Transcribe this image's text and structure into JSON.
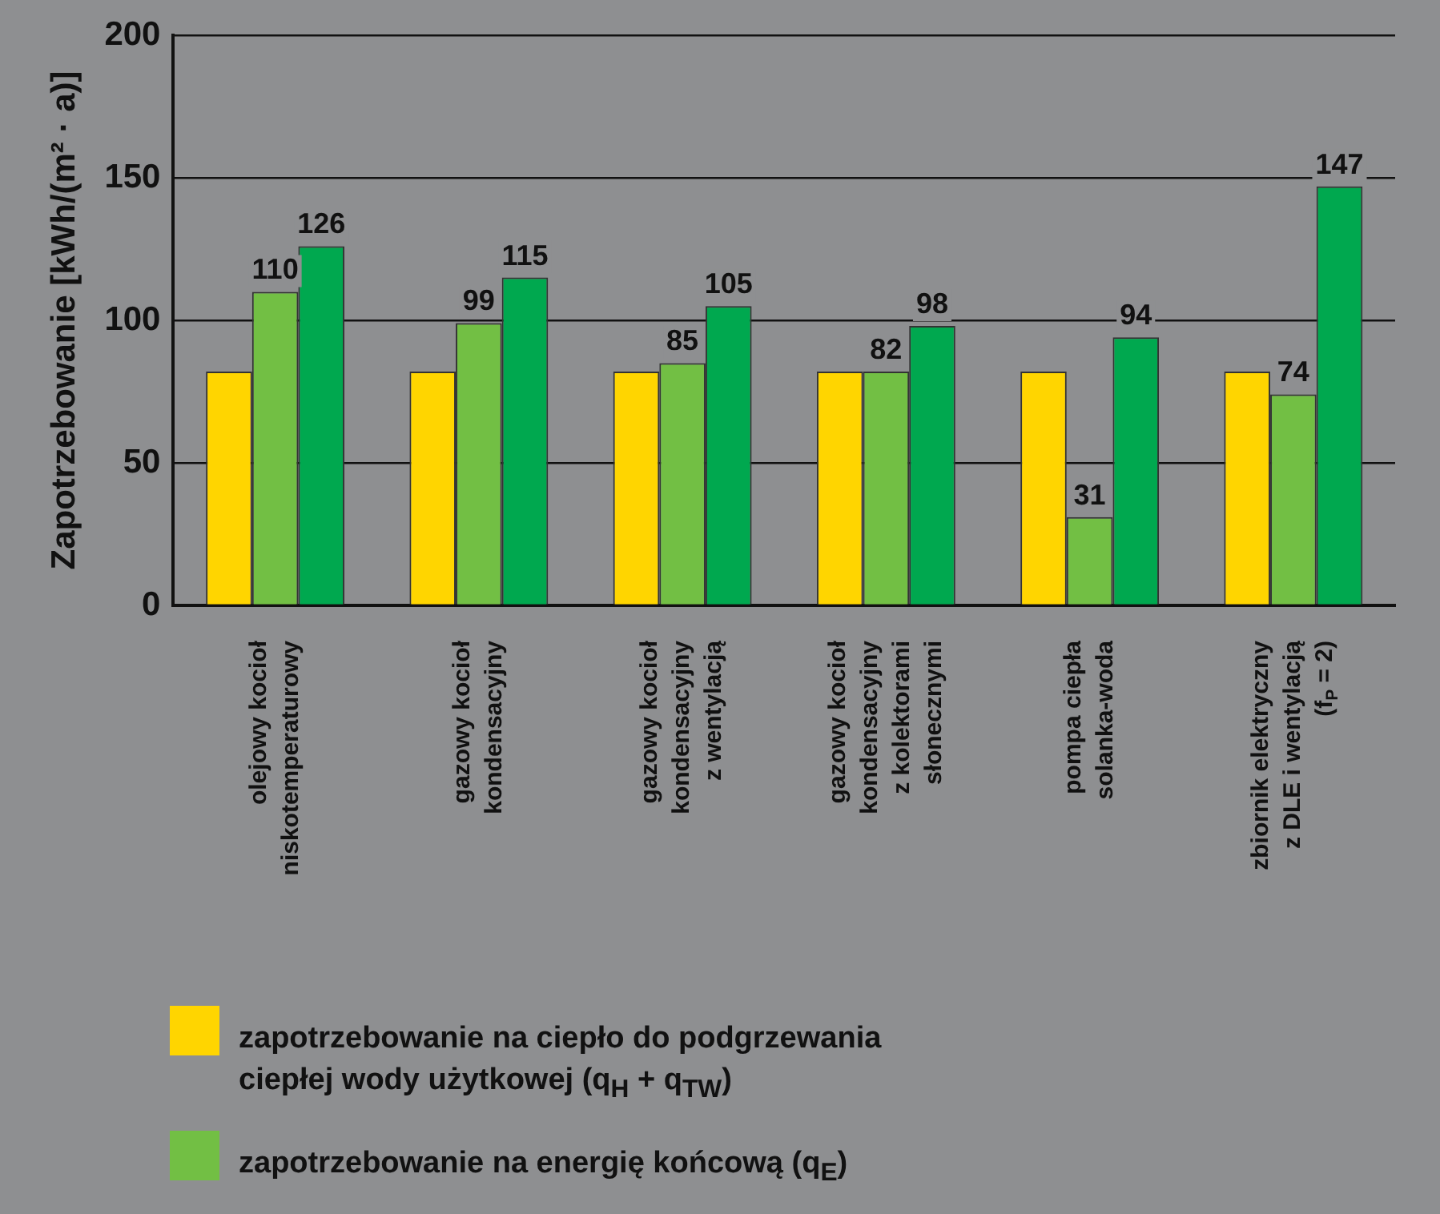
{
  "chart_data": {
    "type": "bar",
    "ylabel": "Zapotrzebowanie [kWh/(m² · a)]",
    "categories": [
      "olejowy kocioł\nniskotemperaturowy",
      "gazowy kocioł\nkondensacyjny",
      "gazowy kocioł\nkondensacyjny\nz wentylacją",
      "gazowy kocioł\nkondensacyjny\nz kolektorami\nsłonecznymi",
      "pompa ciepła\nsolanka-woda",
      "zbiornik elektryczny\nz DLE i wentylacją\n(f$_{P}$ = 2)"
    ],
    "series": [
      {
        "name": "zapotrzebowanie na ciepło do podgrzewania\nciepłej wody użytkowej (q$_{H}$ + q$_{TW}$)",
        "color": "#ffd500",
        "values": [
          82,
          82,
          82,
          82,
          82,
          82
        ]
      },
      {
        "name": "zapotrzebowanie na energię końcową (q$_{E}$)",
        "color": "#72bf44",
        "values": [
          110,
          99,
          85,
          82,
          31,
          74
        ],
        "value_labels": [
          "110",
          "99",
          "85",
          "82",
          "31",
          "74"
        ]
      },
      {
        "color": "#00a84f",
        "values": [
          126,
          115,
          105,
          98,
          94,
          147
        ],
        "value_labels": [
          "126",
          "115",
          "105",
          "98",
          "94",
          "147"
        ]
      }
    ],
    "ylim": [
      0,
      200
    ],
    "yticks": [
      0,
      50,
      100,
      150,
      200
    ],
    "grid": "y",
    "legend": "bottom"
  }
}
